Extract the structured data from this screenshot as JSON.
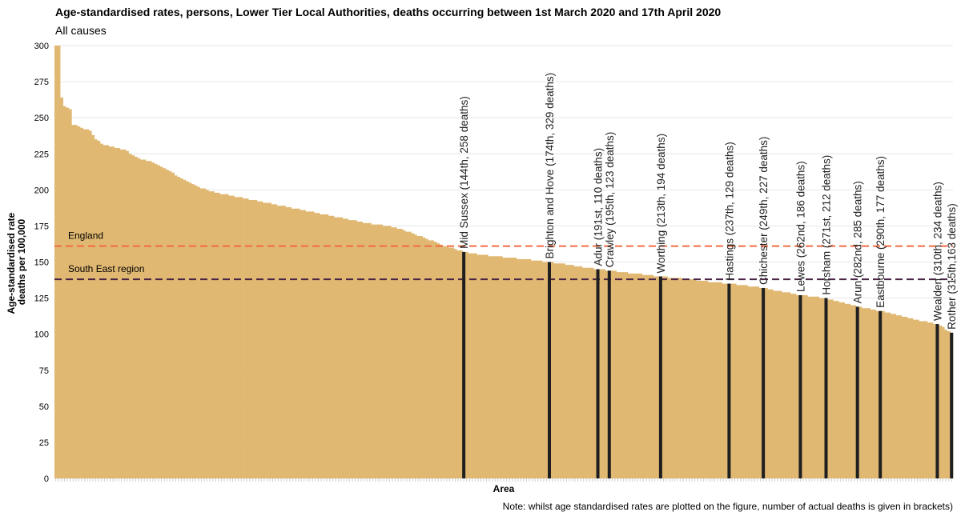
{
  "header": {
    "title": "Age-standardised rates, persons, Lower Tier Local Authorities, deaths occurring between 1st March 2020 and 17th April 2020",
    "subtitle": "All causes"
  },
  "note": "Note: whilst age standardised rates are plotted on the figure, number of actual deaths is given in brackets)",
  "chart_data": {
    "type": "bar",
    "xlabel": "Area",
    "ylabel": "Age-standardised rate deaths per 100,000",
    "ylabel_lines": [
      "Age-standardised rate",
      "deaths per 100,000"
    ],
    "ylim": [
      0,
      300
    ],
    "yticks": [
      0,
      25,
      50,
      75,
      100,
      125,
      150,
      175,
      200,
      225,
      250,
      275,
      300
    ],
    "grid": true,
    "n_areas": 315,
    "bar_color": "#e0b872",
    "highlight_color": "#1f1f1f",
    "ranked_rates_approx": [
      {
        "rank": 1,
        "value": 300
      },
      {
        "rank": 2,
        "value": 300
      },
      {
        "rank": 3,
        "value": 264
      },
      {
        "rank": 4,
        "value": 258
      },
      {
        "rank": 6,
        "value": 256
      },
      {
        "rank": 7,
        "value": 245
      },
      {
        "rank": 9,
        "value": 244
      },
      {
        "rank": 11,
        "value": 242
      },
      {
        "rank": 13,
        "value": 241
      },
      {
        "rank": 15,
        "value": 235
      },
      {
        "rank": 17,
        "value": 232
      },
      {
        "rank": 20,
        "value": 230
      },
      {
        "rank": 25,
        "value": 228
      },
      {
        "rank": 28,
        "value": 224
      },
      {
        "rank": 30,
        "value": 222
      },
      {
        "rank": 35,
        "value": 219
      },
      {
        "rank": 40,
        "value": 214
      },
      {
        "rank": 45,
        "value": 208
      },
      {
        "rank": 50,
        "value": 203
      },
      {
        "rank": 55,
        "value": 199
      },
      {
        "rank": 60,
        "value": 197
      },
      {
        "rank": 70,
        "value": 193
      },
      {
        "rank": 80,
        "value": 189
      },
      {
        "rank": 90,
        "value": 185
      },
      {
        "rank": 100,
        "value": 181
      },
      {
        "rank": 110,
        "value": 177
      },
      {
        "rank": 120,
        "value": 174
      },
      {
        "rank": 130,
        "value": 167
      },
      {
        "rank": 136,
        "value": 162
      },
      {
        "rank": 144,
        "value": 157
      },
      {
        "rank": 150,
        "value": 155
      },
      {
        "rank": 160,
        "value": 153
      },
      {
        "rank": 174,
        "value": 150
      },
      {
        "rank": 191,
        "value": 145
      },
      {
        "rank": 195,
        "value": 144
      },
      {
        "rank": 213,
        "value": 140
      },
      {
        "rank": 237,
        "value": 135
      },
      {
        "rank": 249,
        "value": 132
      },
      {
        "rank": 262,
        "value": 127
      },
      {
        "rank": 271,
        "value": 125
      },
      {
        "rank": 282,
        "value": 119
      },
      {
        "rank": 290,
        "value": 116
      },
      {
        "rank": 300,
        "value": 111
      },
      {
        "rank": 310,
        "value": 107
      },
      {
        "rank": 315,
        "value": 101
      }
    ],
    "reference_lines": [
      {
        "name": "England",
        "value": 161,
        "color": "#f26b43"
      },
      {
        "name": "South East region",
        "value": 138,
        "color": "#4a2444"
      }
    ],
    "highlighted": [
      {
        "rank": 144,
        "value": 157,
        "label": "Mid Sussex (144th, 258 deaths)"
      },
      {
        "rank": 174,
        "value": 150,
        "label": "Brighton and Hove (174th, 329 deaths)"
      },
      {
        "rank": 191,
        "value": 145,
        "label": "Adur (191st, 110 deaths)"
      },
      {
        "rank": 195,
        "value": 144,
        "label": "Crawley (195th, 123 deaths)"
      },
      {
        "rank": 213,
        "value": 140,
        "label": "Worthing (213th, 194 deaths)"
      },
      {
        "rank": 237,
        "value": 135,
        "label": "Hastings (237th, 129 deaths)"
      },
      {
        "rank": 249,
        "value": 132,
        "label": "Chichester (249th, 227 deaths)"
      },
      {
        "rank": 262,
        "value": 127,
        "label": "Lewes (262nd, 186 deaths)"
      },
      {
        "rank": 271,
        "value": 125,
        "label": "Horsham (271st, 212 deaths)"
      },
      {
        "rank": 282,
        "value": 119,
        "label": "Arun (282nd, 285 deaths)"
      },
      {
        "rank": 290,
        "value": 116,
        "label": "Eastbourne (290th, 177 deaths)"
      },
      {
        "rank": 310,
        "value": 107,
        "label": "Wealden (310th, 234 deaths)"
      },
      {
        "rank": 315,
        "value": 101,
        "label": "Rother (315th,163 deaths)"
      }
    ]
  }
}
